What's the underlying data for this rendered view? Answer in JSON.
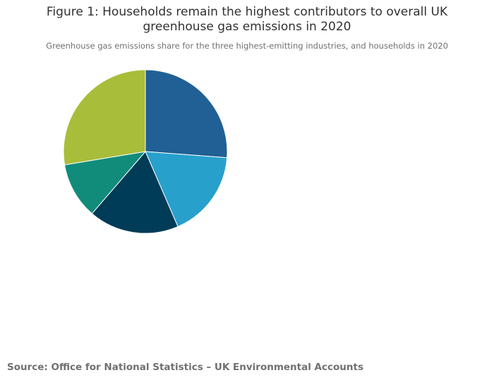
{
  "figure": {
    "title_line1": "Figure 1: Households remain the highest contributors to overall UK",
    "title_line2": "greenhouse gas emissions in 2020",
    "subtitle": "Greenhouse gas emissions share for the three highest-emitting industries, and households in 2020",
    "source": "Source: Office for National Statistics – UK Environmental Accounts"
  },
  "chart_data": {
    "type": "pie",
    "title": "Figure 1: Households remain the highest contributors to overall UK greenhouse gas emissions in 2020",
    "subtitle": "Greenhouse gas emissions share for the three highest-emitting industries, and households in 2020",
    "start": "12 o'clock",
    "direction": "clockwise",
    "legend": "none",
    "slices": [
      {
        "value": 26.2,
        "color": "#206095"
      },
      {
        "value": 17.3,
        "color": "#27a0cc"
      },
      {
        "value": 17.8,
        "color": "#003c57"
      },
      {
        "value": 11.1,
        "color": "#118c7b"
      },
      {
        "value": 27.6,
        "color": "#a8bd3a"
      }
    ]
  }
}
